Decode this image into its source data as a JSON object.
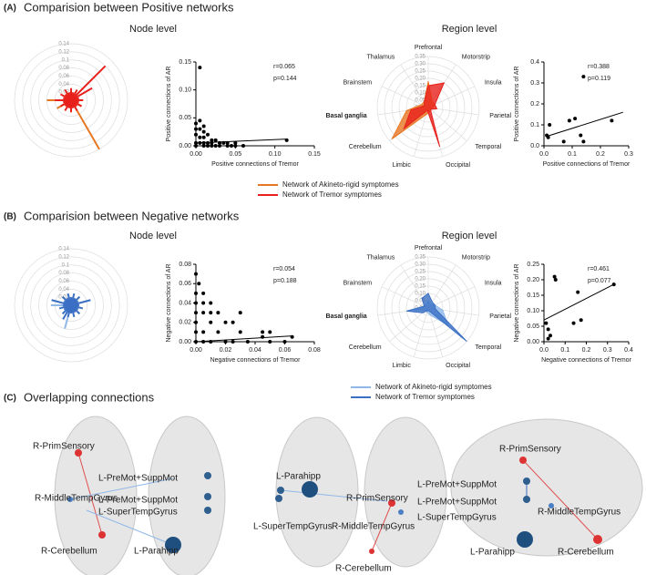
{
  "panels": [
    {
      "label": "(A)",
      "title": "Comparision between  Positive networks",
      "node_title": "Node level",
      "region_title": "Region level"
    },
    {
      "label": "(B)",
      "title": "Comparision between  Negative networks",
      "node_title": "Node level",
      "region_title": "Region level"
    },
    {
      "label": "(C)",
      "title": "Overlapping connections"
    }
  ],
  "brain_labels": [
    "R-PrimSensory",
    "R-MiddleTempGyrus",
    "R-Cerebellum",
    "L-PreMot+SuppMot",
    "L-PreMot+SuppMot",
    "L-SuperTempGyrus",
    "L-Parahipp",
    "L-Parahipp",
    "L-SuperTempGyrus",
    "R-PrimSensory",
    "R-MiddleTempGyrus",
    "R-Cerebellum",
    "R-PrimSensory",
    "L-PreMot+SuppMot",
    "L-PreMot+SuppMot",
    "L-SuperTempGyrus",
    "R-MiddleTempGyrus",
    "L-Parahipp",
    "R-Cerebellum"
  ],
  "chart_data": [
    {
      "type": "polar",
      "rlim": [
        0,
        0.14
      ],
      "rticks": [
        0,
        0.02,
        0.04,
        0.06,
        0.08,
        0.1,
        0.12,
        0.14
      ],
      "series": [
        {
          "name": "Network of Akineto-rigid symptomes",
          "color": "#e87722",
          "values": [
            0.01,
            0.02,
            0.01,
            0.02,
            0.01,
            0.02,
            0.01,
            0.02,
            0.03,
            0.02,
            0.14,
            0.02,
            0.01,
            0.02,
            0.01,
            0.02,
            0.04,
            0.02,
            0.06,
            0.02,
            0.01,
            0.02,
            0.01,
            0.02
          ]
        },
        {
          "name": "Network of Tremor symptomes",
          "color": "#e8211c",
          "values": [
            0.03,
            0.02,
            0.03,
            0.12,
            0.06,
            0.02,
            0.03,
            0.02,
            0.03,
            0.02,
            0.03,
            0.02,
            0.03,
            0.02,
            0.03,
            0.02,
            0.03,
            0.02,
            0.04,
            0.02,
            0.03,
            0.02,
            0.03,
            0.02
          ]
        }
      ]
    },
    {
      "type": "scatter",
      "xlabel": "Positive connections of Tremor",
      "ylabel": "Positive connections of AR",
      "annotations": [
        "r=0.065",
        "p=0.144"
      ],
      "xlim": [
        0,
        0.15
      ],
      "xticks": [
        {
          "value": 0,
          "label": "0.00"
        },
        {
          "value": 0.05,
          "label": "0.05"
        },
        {
          "value": 0.1,
          "label": "0.10"
        },
        {
          "value": 0.15,
          "label": "0.15"
        }
      ],
      "ylim": [
        0,
        0.15
      ],
      "yticks": [
        {
          "value": 0,
          "label": "0.00"
        },
        {
          "value": 0.05,
          "label": "0.05"
        },
        {
          "value": 0.1,
          "label": "0.10"
        },
        {
          "value": 0.15,
          "label": "0.15"
        }
      ],
      "x": [
        0.005,
        0,
        0.005,
        0.01,
        0,
        0.005,
        0.01,
        0.015,
        0,
        0.005,
        0.01,
        0.02,
        0.025,
        0.03,
        0,
        0.005,
        0.01,
        0.015,
        0.02,
        0.04,
        0.05,
        0,
        0.01,
        0.02,
        0.03,
        0.04,
        0.05,
        0.06,
        0.115,
        0.015,
        0.025,
        0.035,
        0.045
      ],
      "y": [
        0.14,
        0.04,
        0.045,
        0.035,
        0.03,
        0.03,
        0.025,
        0.02,
        0.02,
        0.015,
        0.015,
        0.01,
        0.01,
        0.005,
        0.005,
        0.005,
        0.005,
        0.005,
        0.005,
        0.005,
        0.005,
        0,
        0,
        0,
        0,
        0,
        0,
        0,
        0.01,
        0,
        0,
        0.005,
        0
      ],
      "fit": {
        "x": [
          0,
          0.115
        ],
        "y": [
          0.005,
          0.012
        ]
      }
    },
    {
      "type": "radar",
      "categories": [
        "Prefrontal",
        "Motorstrip",
        "Insula",
        "Parietal",
        "Temporal",
        "Occipital",
        "Limbic",
        "Cerebellum",
        "Basal ganglia",
        "Brainstem",
        "Thalamus"
      ],
      "rlim": [
        0,
        0.35
      ],
      "rticks": [
        {
          "value": 0,
          "label": "0.00"
        },
        {
          "value": 0.05,
          "label": "0.05"
        },
        {
          "value": 0.1,
          "label": "0.10"
        },
        {
          "value": 0.15,
          "label": "0.15"
        },
        {
          "value": 0.2,
          "label": "0.20"
        },
        {
          "value": 0.25,
          "label": "0.25"
        },
        {
          "value": 0.3,
          "label": "0.30"
        },
        {
          "value": 0.35,
          "label": "0.35"
        }
      ],
      "series": [
        {
          "color": "#e87722",
          "values": [
            0.18,
            0.05,
            0.05,
            0.03,
            0.02,
            0.03,
            0.05,
            0.33,
            0.15,
            0.05,
            0.05
          ]
        },
        {
          "color": "#e8211c",
          "values": [
            0.15,
            0.2,
            0.05,
            0.06,
            0.02,
            0.28,
            0.02,
            0.22,
            0.12,
            0.03,
            0.05
          ]
        }
      ]
    },
    {
      "type": "scatter",
      "xlabel": "Positive connections of Tremor",
      "ylabel": "Positive connections of AR",
      "annotations": [
        "r=0.388",
        "p=0.119"
      ],
      "xlim": [
        0,
        0.3
      ],
      "xticks": [
        {
          "value": 0,
          "label": "0.0"
        },
        {
          "value": 0.1,
          "label": "0.1"
        },
        {
          "value": 0.2,
          "label": "0.2"
        },
        {
          "value": 0.3,
          "label": "0.3"
        }
      ],
      "ylim": [
        0,
        0.4
      ],
      "yticks": [
        {
          "value": 0,
          "label": "0.0"
        },
        {
          "value": 0.1,
          "label": "0.1"
        },
        {
          "value": 0.2,
          "label": "0.2"
        },
        {
          "value": 0.3,
          "label": "0.3"
        },
        {
          "value": 0.4,
          "label": "0.4"
        }
      ],
      "x": [
        0.01,
        0.015,
        0.02,
        0.07,
        0.09,
        0.11,
        0.13,
        0.14,
        0.14,
        0.24
      ],
      "y": [
        0.05,
        0.04,
        0.1,
        0.02,
        0.12,
        0.13,
        0.05,
        0.02,
        0.33,
        0.12
      ],
      "fit": {
        "x": [
          0.01,
          0.28
        ],
        "y": [
          0.045,
          0.16
        ]
      }
    },
    {
      "type": "polar",
      "rlim": [
        0,
        0.14
      ],
      "rticks": [
        0,
        0.02,
        0.04,
        0.06,
        0.08,
        0.1,
        0.12,
        0.14
      ],
      "series": [
        {
          "name": "Network of Akineto-rigid symptomes",
          "color": "#8fb8e8",
          "values": [
            0.02,
            0.01,
            0.02,
            0.01,
            0.02,
            0.01,
            0.02,
            0.01,
            0.02,
            0.01,
            0.02,
            0.01,
            0.02,
            0.06,
            0.02,
            0.01,
            0.02,
            0.01,
            0.05,
            0.01,
            0.02,
            0.01,
            0.02,
            0.01
          ]
        },
        {
          "name": "Network of Tremor symptomes",
          "color": "#3a6fc4",
          "values": [
            0.02,
            0.03,
            0.02,
            0.03,
            0.02,
            0.05,
            0.02,
            0.03,
            0.02,
            0.03,
            0.02,
            0.03,
            0.02,
            0.03,
            0.04,
            0.03,
            0.02,
            0.03,
            0.02,
            0.05,
            0.02,
            0.03,
            0.02,
            0.03
          ]
        }
      ]
    },
    {
      "type": "scatter",
      "xlabel": "Negative  connections of Tremor",
      "ylabel": "Negative connections of AR",
      "annotations": [
        "r=0.054",
        "p=0.188"
      ],
      "xlim": [
        0,
        0.08
      ],
      "xticks": [
        {
          "value": 0,
          "label": "0.00"
        },
        {
          "value": 0.02,
          "label": "0.02"
        },
        {
          "value": 0.04,
          "label": "0.04"
        },
        {
          "value": 0.06,
          "label": "0.06"
        },
        {
          "value": 0.08,
          "label": "0.08"
        }
      ],
      "ylim": [
        0,
        0.08
      ],
      "yticks": [
        {
          "value": 0,
          "label": "0.00"
        },
        {
          "value": 0.02,
          "label": "0.02"
        },
        {
          "value": 0.04,
          "label": "0.04"
        },
        {
          "value": 0.06,
          "label": "0.06"
        },
        {
          "value": 0.08,
          "label": "0.08"
        }
      ],
      "x": [
        0,
        0.002,
        0,
        0.005,
        0,
        0.005,
        0.01,
        0,
        0.005,
        0.01,
        0.015,
        0.03,
        0,
        0.01,
        0.02,
        0.025,
        0,
        0.005,
        0.015,
        0.03,
        0.045,
        0.05,
        0,
        0.005,
        0.01,
        0.02,
        0.025,
        0.035,
        0.045,
        0.065,
        0.05,
        0.06
      ],
      "y": [
        0.07,
        0.06,
        0.05,
        0.05,
        0.04,
        0.04,
        0.04,
        0.03,
        0.03,
        0.03,
        0.03,
        0.03,
        0.02,
        0.02,
        0.02,
        0.02,
        0.01,
        0.01,
        0.01,
        0.01,
        0.01,
        0.01,
        0,
        0,
        0,
        0,
        0,
        0,
        0.005,
        0.005,
        0,
        0
      ],
      "fit": {
        "x": [
          0,
          0.065
        ],
        "y": [
          0,
          0.006
        ]
      }
    },
    {
      "type": "radar",
      "categories": [
        "Prefrontal",
        "Motorstrip",
        "Insula",
        "Parietal",
        "Temporal",
        "Occipital",
        "Limbic",
        "Cerebellum",
        "Basal ganglia",
        "Brainstem",
        "Thalamus"
      ],
      "rlim": [
        0,
        0.35
      ],
      "rticks": [
        {
          "value": 0,
          "label": "0.00"
        },
        {
          "value": 0.05,
          "label": "0.05"
        },
        {
          "value": 0.1,
          "label": "0.10"
        },
        {
          "value": 0.15,
          "label": "0.15"
        },
        {
          "value": 0.2,
          "label": "0.20"
        },
        {
          "value": 0.25,
          "label": "0.25"
        },
        {
          "value": 0.3,
          "label": "0.30"
        },
        {
          "value": 0.35,
          "label": "0.35"
        }
      ],
      "series": [
        {
          "color": "#8fb8e8",
          "values": [
            0.05,
            0.03,
            0.05,
            0.1,
            0.18,
            0.05,
            0.03,
            0.02,
            0.1,
            0.03,
            0.03
          ]
        },
        {
          "color": "#3a6fc4",
          "values": [
            0.1,
            0.05,
            0.05,
            0.05,
            0.35,
            0.02,
            0.02,
            0.05,
            0.15,
            0.03,
            0.08
          ]
        }
      ]
    },
    {
      "type": "scatter",
      "xlabel": "Negative    connections of Tremor",
      "ylabel": "Negative connections of AR",
      "annotations": [
        "r=0.461",
        "p=0.077"
      ],
      "xlim": [
        0,
        0.4
      ],
      "xticks": [
        {
          "value": 0,
          "label": "0.0"
        },
        {
          "value": 0.1,
          "label": "0.1"
        },
        {
          "value": 0.2,
          "label": "0.2"
        },
        {
          "value": 0.3,
          "label": "0.3"
        },
        {
          "value": 0.4,
          "label": "0.4"
        }
      ],
      "ylim": [
        0,
        0.25
      ],
      "yticks": [
        {
          "value": 0,
          "label": "0.00"
        },
        {
          "value": 0.05,
          "label": "0.05"
        },
        {
          "value": 0.1,
          "label": "0.10"
        },
        {
          "value": 0.15,
          "label": "0.15"
        },
        {
          "value": 0.2,
          "label": "0.20"
        },
        {
          "value": 0.25,
          "label": "0.25"
        }
      ],
      "x": [
        0.01,
        0.02,
        0.03,
        0.05,
        0.055,
        0.14,
        0.16,
        0.175,
        0.33,
        0.02
      ],
      "y": [
        0.06,
        0.04,
        0.02,
        0.21,
        0.2,
        0.06,
        0.16,
        0.07,
        0.185,
        0.01
      ],
      "fit": {
        "x": [
          0,
          0.33
        ],
        "y": [
          0.07,
          0.185
        ]
      }
    }
  ]
}
